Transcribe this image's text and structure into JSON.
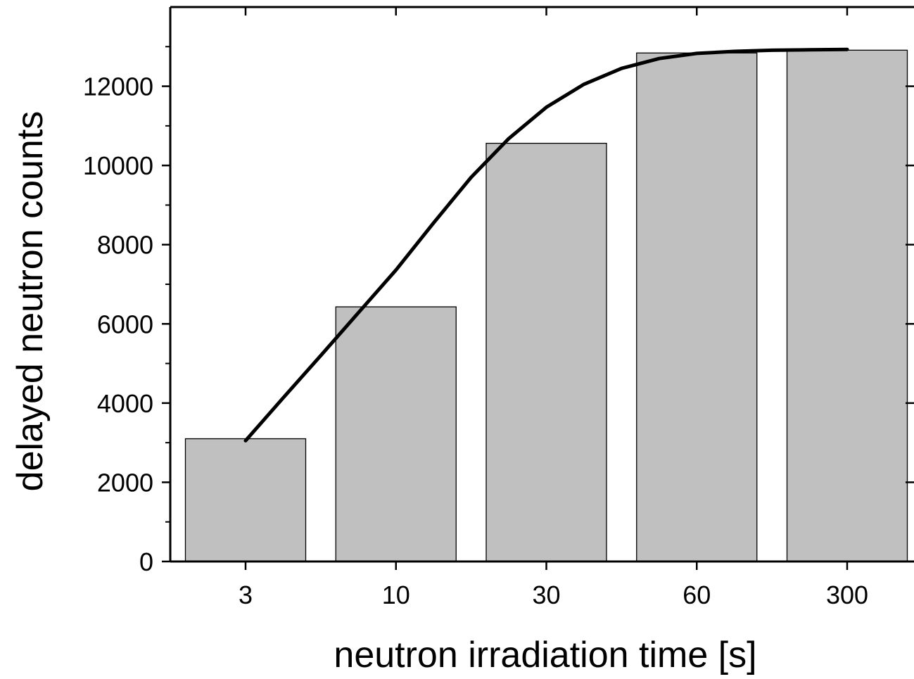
{
  "chart_data": {
    "type": "bar",
    "title": "",
    "xlabel": "neutron irradiation time [s]",
    "ylabel": "delayed neutron counts",
    "categories": [
      "3",
      "10",
      "30",
      "60",
      "300"
    ],
    "values": [
      3100,
      6430,
      10560,
      12840,
      12910
    ],
    "ylim": [
      0,
      14000
    ],
    "yticks": [
      0,
      2000,
      4000,
      6000,
      8000,
      10000,
      12000
    ],
    "ytick_labels": [
      "0",
      "2000",
      "4000",
      "6000",
      "8000",
      "10000",
      "12000"
    ],
    "grid": false,
    "legend": "none",
    "bar_color": "#c0c0c0",
    "line_color": "#000000",
    "fit_curve": {
      "type": "line",
      "x": [
        0,
        0.25,
        0.5,
        0.75,
        1,
        1.25,
        1.5,
        1.75,
        2,
        2.25,
        2.5,
        2.75,
        3,
        3.25,
        3.5,
        3.75,
        4
      ],
      "y": [
        3050,
        4130,
        5200,
        6280,
        7360,
        8550,
        9700,
        10680,
        11470,
        12050,
        12450,
        12700,
        12830,
        12880,
        12910,
        12920,
        12930
      ]
    }
  }
}
